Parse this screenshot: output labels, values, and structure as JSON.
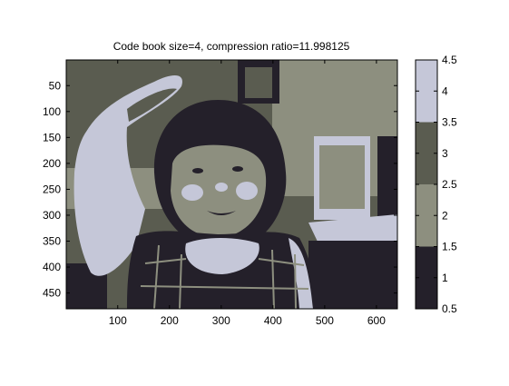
{
  "chart_data": {
    "type": "heatmap",
    "title": "Code book size=4, compression ratio=11.998125",
    "xlabel": "",
    "ylabel": "",
    "image": {
      "description_levels": 4,
      "xlim": [
        0.5,
        640.5
      ],
      "ylim": [
        0.5,
        480.5
      ],
      "y_reversed": true,
      "x_ticks": [
        100,
        200,
        300,
        400,
        500,
        600
      ],
      "y_ticks": [
        50,
        100,
        150,
        200,
        250,
        300,
        350,
        400,
        450
      ]
    },
    "colorbar": {
      "clim": [
        0.5,
        4.5
      ],
      "ticks": [
        0.5,
        1,
        1.5,
        2,
        2.5,
        3,
        3.5,
        4,
        4.5
      ],
      "levels": [
        {
          "value": 1,
          "color": "#24202a"
        },
        {
          "value": 2,
          "color": "#8d8f7f"
        },
        {
          "value": 3,
          "color": "#5a5c50"
        },
        {
          "value": 4,
          "color": "#c5c7d8"
        }
      ]
    }
  }
}
